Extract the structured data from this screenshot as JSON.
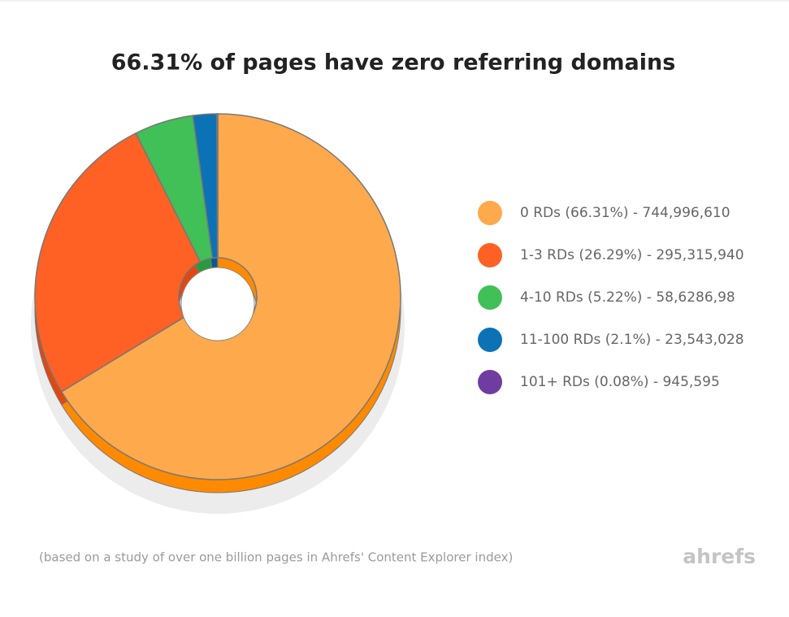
{
  "chart_data": {
    "type": "donut",
    "title": "66.31% of pages have zero referring domains",
    "categories": [
      "0 RDs (66.31%) - 744,996,610",
      "1-3 RDs (26.29%) - 295,315,940",
      "4-10 RDs (5.22%) - 58,6286,98",
      "11-100 RDs (2.1%) - 23,543,028",
      "101+ RDs (0.08%) - 945,595"
    ],
    "values": [
      66.31,
      26.29,
      5.22,
      2.1,
      0.08
    ],
    "colors": [
      "#ffa94d",
      "#ff6124",
      "#40c057",
      "#0b72b5",
      "#6f3ca0"
    ],
    "side_colors": [
      "#ff8a00",
      "#e2470f",
      "#2a9a3e",
      "#075a8f",
      "#552b80"
    ],
    "legend": "right",
    "caption": "(based on a study of over one billion pages in Ahrefs' Content Explorer index)",
    "brand": "ahrefs"
  }
}
